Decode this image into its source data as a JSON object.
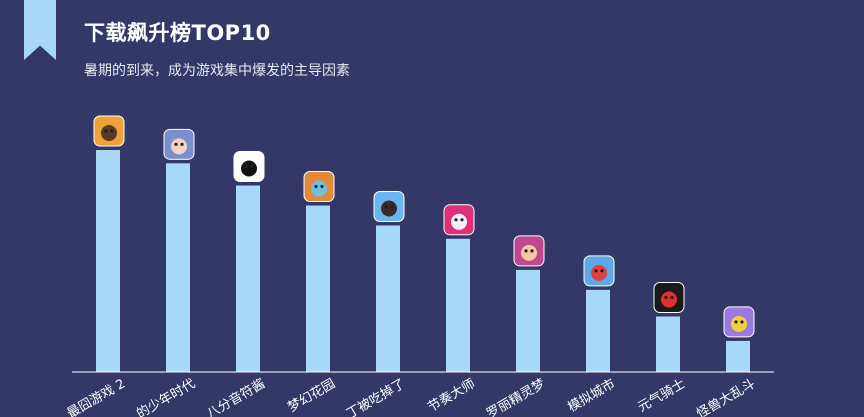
{
  "header": {
    "title": "下载飙升榜TOP10",
    "subtitle": "暑期的到来，成为游戏集中爆发的主导因素"
  },
  "colors": {
    "background": "#333867",
    "bar": "#a7d8f8",
    "axis": "#ffffff",
    "text": "#ffffff"
  },
  "chart_data": {
    "type": "bar",
    "title": "下载飙升榜TOP10",
    "subtitle": "暑期的到来，成为游戏集中爆发的主导因素",
    "categories": [
      "最囧游戏 2",
      "...的少年时代",
      "八分音符酱",
      "梦幻花园",
      "...丁被吃掉了",
      "节奏大师",
      "...罗丽精灵梦",
      "模拟城市",
      "元气骑士",
      "怪兽大乱斗"
    ],
    "values": [
      100,
      94,
      84,
      75,
      66,
      60,
      46,
      37,
      25,
      14
    ],
    "ylim": [
      0,
      100
    ],
    "grid": false,
    "legend": "none",
    "icons": [
      "cartoon-face-icon",
      "anime-group-icon",
      "note-character-icon",
      "fox-icon",
      "girl-icon",
      "rhythm-ball-icon",
      "fairy-doll-icon",
      "city-icon",
      "knight-icon",
      "purple-monster-icon"
    ]
  }
}
